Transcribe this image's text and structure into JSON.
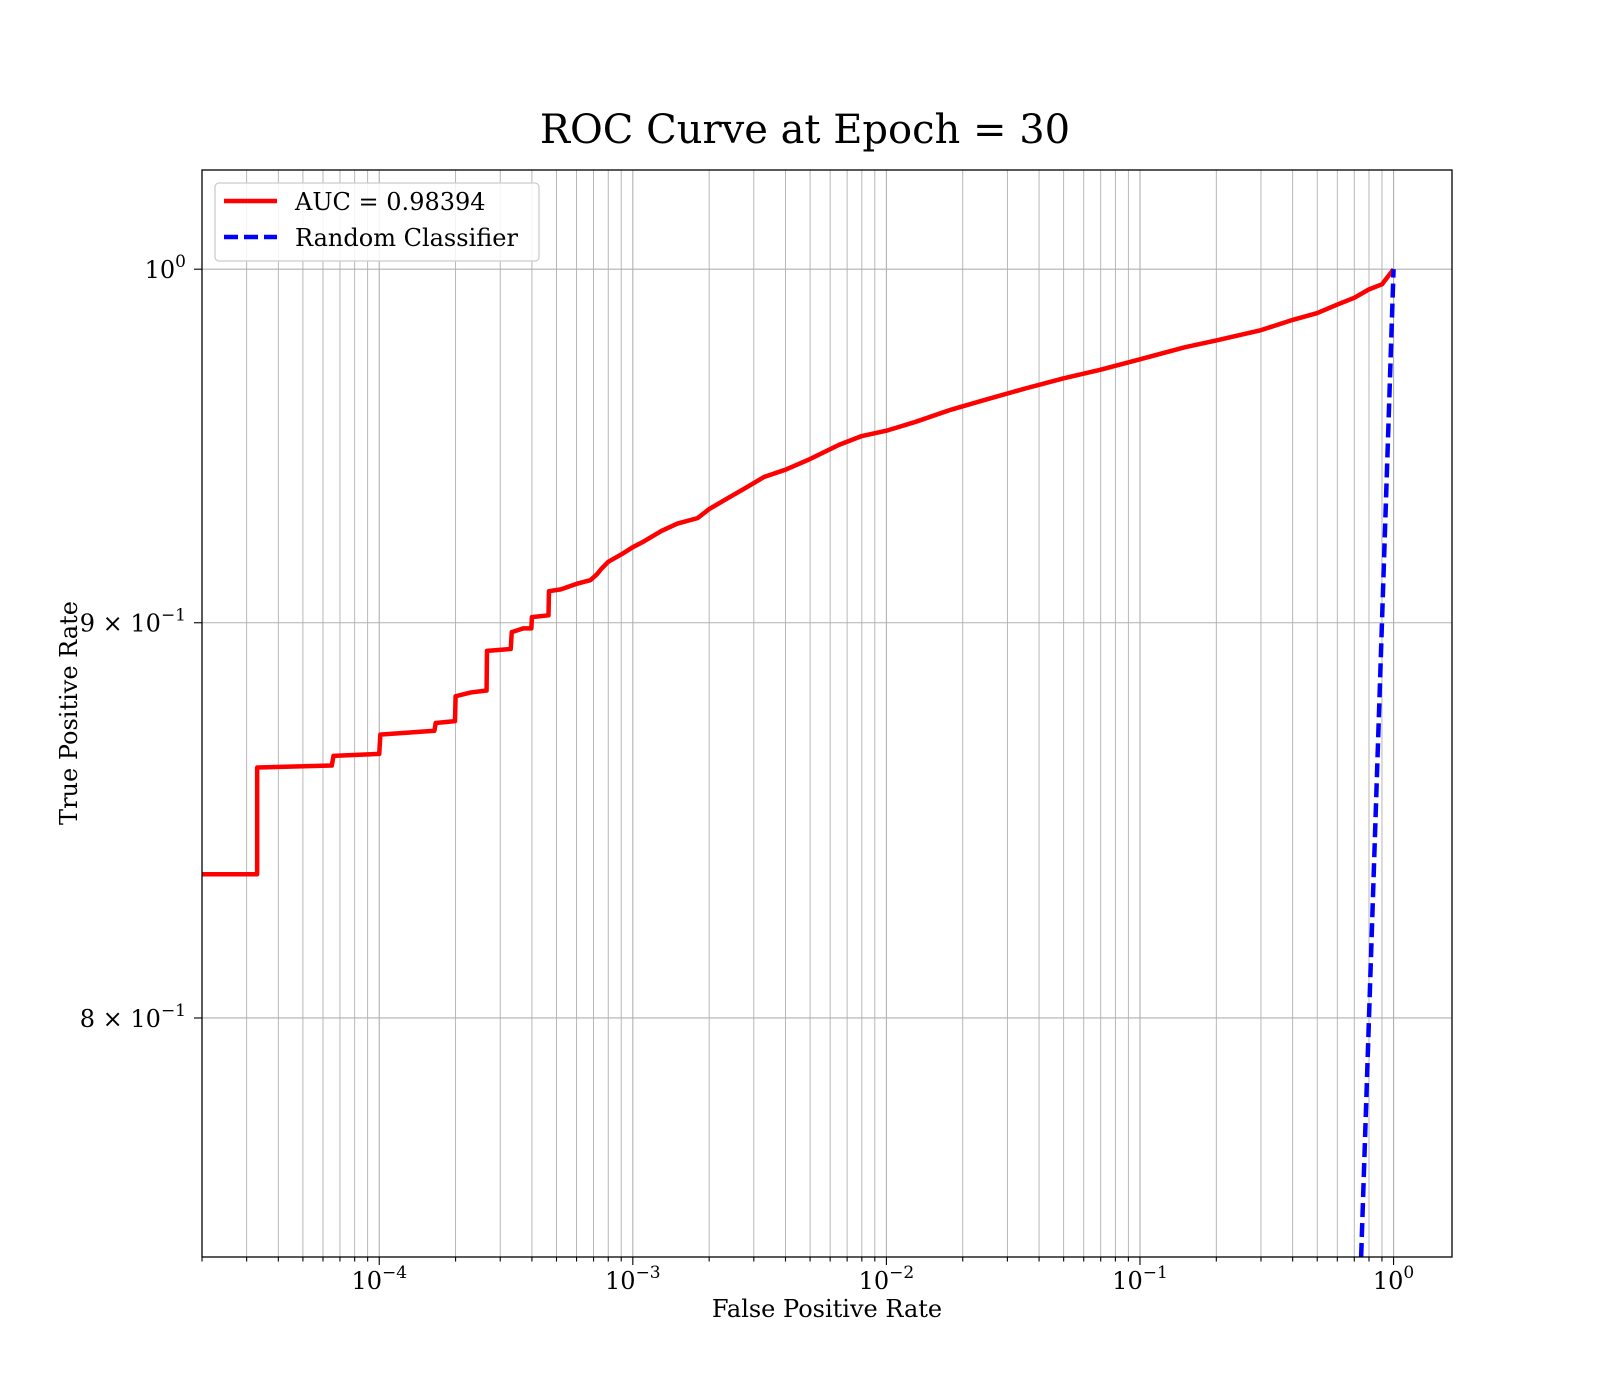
{
  "chart_data": {
    "type": "line",
    "title": "ROC Curve at Epoch = 30",
    "xlabel": "False Positive Rate",
    "ylabel": "True Positive Rate",
    "x_scale": "log",
    "y_scale": "log",
    "xlim": [
      2e-05,
      1.7
    ],
    "ylim": [
      0.745,
      1.03
    ],
    "grid": true,
    "grid_minor": true,
    "legend_position": "top-left",
    "x_ticks": [
      {
        "value": 0.0001,
        "base": "10",
        "exp": "−4"
      },
      {
        "value": 0.001,
        "base": "10",
        "exp": "−3"
      },
      {
        "value": 0.01,
        "base": "10",
        "exp": "−2"
      },
      {
        "value": 0.1,
        "base": "10",
        "exp": "−1"
      },
      {
        "value": 1,
        "base": "10",
        "exp": "0"
      }
    ],
    "y_ticks": [
      {
        "value": 1.0,
        "mant": "",
        "base": "10",
        "exp": "0"
      },
      {
        "value": 0.9,
        "mant": "9 × ",
        "base": "10",
        "exp": "−1"
      },
      {
        "value": 0.8,
        "mant": "8 × ",
        "base": "10",
        "exp": "−1"
      }
    ],
    "series": [
      {
        "name": "AUC = 0.98394",
        "color": "#ff0000",
        "style": "solid",
        "x": [
          2e-05,
          3.3e-05,
          3.3e-05,
          6.5e-05,
          6.6e-05,
          0.0001,
          0.000101,
          0.00013,
          0.000165,
          0.000167,
          0.000199,
          0.0002,
          0.00023,
          0.000265,
          0.000266,
          0.00033,
          0.000333,
          0.00037,
          0.000398,
          0.0004,
          0.000465,
          0.000467,
          0.00052,
          0.0006,
          0.00068,
          0.00072,
          0.00075,
          0.0008,
          0.0009,
          0.001,
          0.0011,
          0.0013,
          0.0015,
          0.0018,
          0.002,
          0.0023,
          0.0028,
          0.0033,
          0.004,
          0.005,
          0.0065,
          0.008,
          0.01,
          0.013,
          0.018,
          0.025,
          0.035,
          0.05,
          0.07,
          0.1,
          0.15,
          0.2,
          0.3,
          0.4,
          0.5,
          0.6,
          0.7,
          0.8,
          0.9,
          1.0
        ],
        "y": [
          0.835,
          0.835,
          0.862,
          0.8625,
          0.865,
          0.8655,
          0.8705,
          0.871,
          0.8715,
          0.8735,
          0.874,
          0.8805,
          0.8815,
          0.882,
          0.8925,
          0.893,
          0.8975,
          0.8985,
          0.8985,
          0.9015,
          0.902,
          0.9085,
          0.909,
          0.9105,
          0.9115,
          0.913,
          0.9145,
          0.9165,
          0.9185,
          0.9205,
          0.922,
          0.925,
          0.927,
          0.9285,
          0.931,
          0.9335,
          0.937,
          0.94,
          0.942,
          0.945,
          0.949,
          0.9515,
          0.953,
          0.9555,
          0.959,
          0.962,
          0.965,
          0.968,
          0.9705,
          0.9735,
          0.977,
          0.979,
          0.982,
          0.985,
          0.987,
          0.9895,
          0.9915,
          0.994,
          0.9955,
          1.0
        ]
      },
      {
        "name": "Random Classifier",
        "color": "#0000ff",
        "style": "dashed",
        "x": [
          0.745,
          1.0
        ],
        "y": [
          0.745,
          1.0
        ]
      }
    ]
  }
}
